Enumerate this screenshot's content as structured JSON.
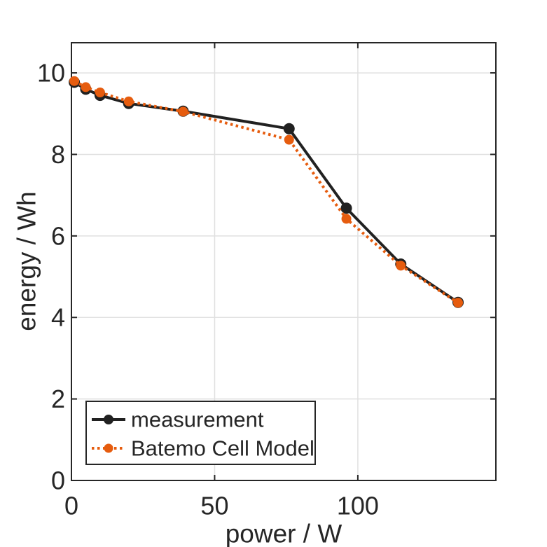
{
  "chart_data": {
    "type": "line",
    "title": "",
    "xlabel": "power / W",
    "ylabel": "energy / Wh",
    "xlim": [
      0,
      148.2
    ],
    "ylim": [
      0,
      10.74
    ],
    "xticks": [
      0,
      50,
      100
    ],
    "yticks": [
      0,
      2,
      4,
      6,
      8,
      10
    ],
    "grid": true,
    "legend_position": "bottom-left",
    "x": [
      1,
      5,
      10,
      20,
      39,
      76,
      96,
      115,
      135
    ],
    "series": [
      {
        "name": "measurement",
        "color": "#212121",
        "line_style": "solid",
        "marker": "circle",
        "values": [
          9.77,
          9.6,
          9.45,
          9.25,
          9.06,
          8.63,
          6.68,
          5.31,
          4.37
        ]
      },
      {
        "name": "Batemo Cell Model",
        "color": "#e65c0e",
        "line_style": "dotted",
        "marker": "circle",
        "values": [
          9.8,
          9.65,
          9.52,
          9.3,
          9.05,
          8.36,
          6.42,
          5.27,
          4.36
        ]
      }
    ],
    "colors": {
      "axis": "#262626",
      "grid": "#e0e0e0",
      "background": "#ffffff"
    }
  }
}
